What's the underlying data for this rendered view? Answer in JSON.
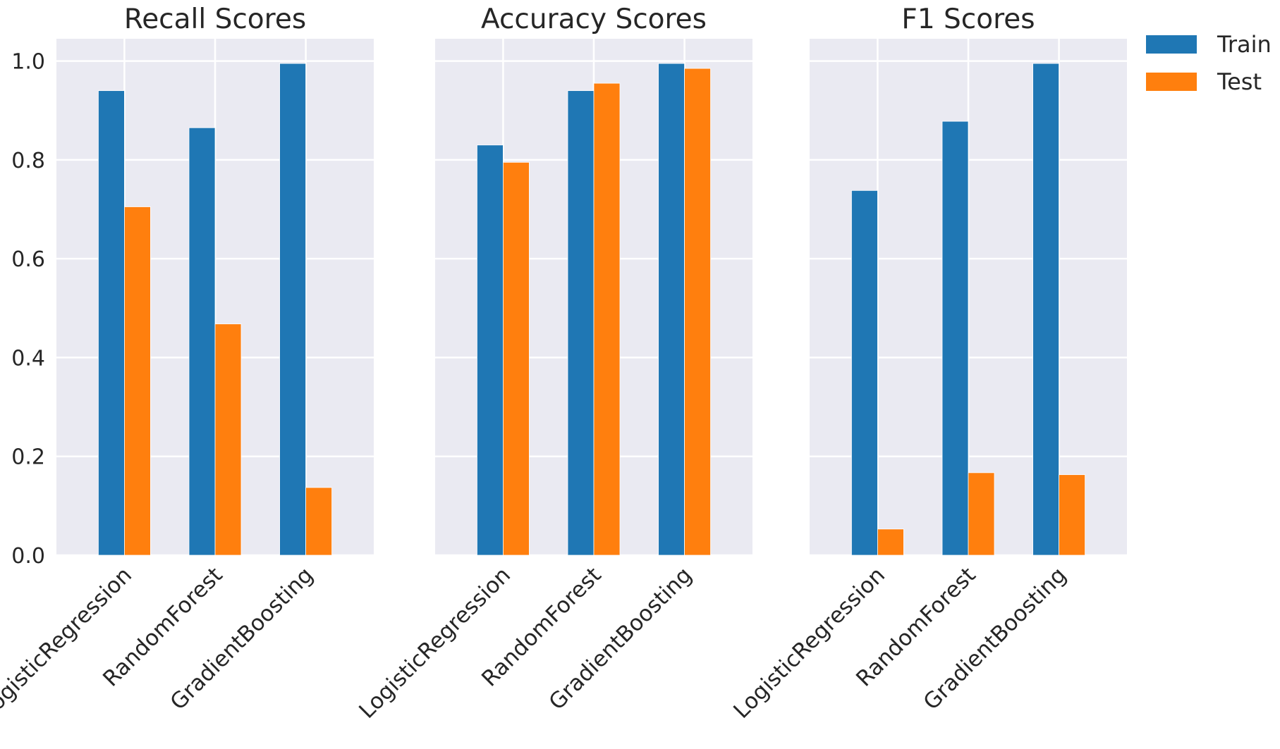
{
  "colors": {
    "train": "#1f77b4",
    "test": "#ff7f0e",
    "panel_background": "#eaeaf2",
    "grid": "#ffffff",
    "text": "#262626"
  },
  "chart_data": [
    {
      "type": "bar",
      "title": "Recall Scores",
      "categories": [
        "LogisticRegression",
        "RandomForest",
        "GradientBoosting"
      ],
      "series": [
        {
          "name": "Train",
          "values": [
            0.94,
            0.865,
            0.995
          ]
        },
        {
          "name": "Test",
          "values": [
            0.705,
            0.468,
            0.137
          ]
        }
      ],
      "ylim": [
        0,
        1.045
      ],
      "yticks": [
        "0.0",
        "0.2",
        "0.4",
        "0.6",
        "0.8",
        "1.0"
      ],
      "grid": true
    },
    {
      "type": "bar",
      "title": "Accuracy Scores",
      "categories": [
        "LogisticRegression",
        "RandomForest",
        "GradientBoosting"
      ],
      "series": [
        {
          "name": "Train",
          "values": [
            0.83,
            0.94,
            0.995
          ]
        },
        {
          "name": "Test",
          "values": [
            0.795,
            0.955,
            0.985
          ]
        }
      ],
      "ylim": [
        0,
        1.045
      ],
      "grid": true
    },
    {
      "type": "bar",
      "title": "F1 Scores",
      "categories": [
        "LogisticRegression",
        "RandomForest",
        "GradientBoosting"
      ],
      "series": [
        {
          "name": "Train",
          "values": [
            0.738,
            0.878,
            0.995
          ]
        },
        {
          "name": "Test",
          "values": [
            0.053,
            0.167,
            0.163
          ]
        }
      ],
      "ylim": [
        0,
        1.045
      ],
      "grid": true
    }
  ],
  "legend": {
    "placement": "outside top-right",
    "entries": [
      "Train",
      "Test"
    ]
  }
}
